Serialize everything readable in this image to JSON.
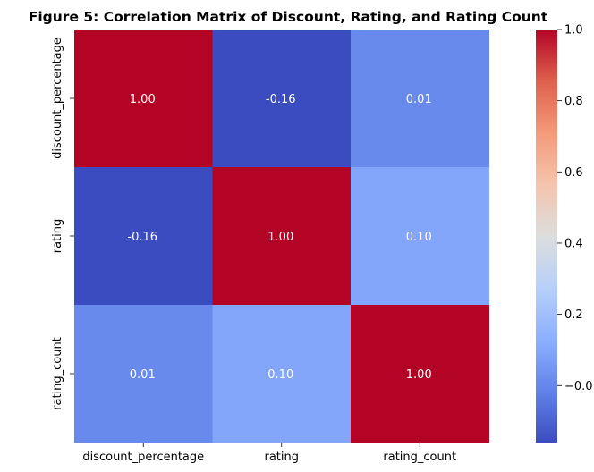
{
  "chart_data": {
    "type": "heatmap",
    "title": "Figure 5: Correlation Matrix of Discount, Rating, and Rating Count",
    "xlabel": "",
    "ylabel": "",
    "x_categories": [
      "discount_percentage",
      "rating",
      "rating_count"
    ],
    "y_categories": [
      "discount_percentage",
      "rating",
      "rating_count"
    ],
    "values": [
      [
        1.0,
        -0.16,
        0.01
      ],
      [
        -0.16,
        1.0,
        0.1
      ],
      [
        0.01,
        0.1,
        1.0
      ]
    ],
    "annotations": [
      [
        "1.00",
        "-0.16",
        "0.01"
      ],
      [
        "-0.16",
        "1.00",
        "0.10"
      ],
      [
        "0.01",
        "0.10",
        "1.00"
      ]
    ],
    "colormap": "coolwarm",
    "vmin": -0.16,
    "vmax": 1.0,
    "colorbar_ticks": [
      -0.0,
      0.2,
      0.4,
      0.6,
      0.8,
      1.0
    ],
    "colorbar_labels": [
      "−0.0",
      "0.2",
      "0.4",
      "0.6",
      "0.8",
      "1.0"
    ],
    "grid": false
  }
}
